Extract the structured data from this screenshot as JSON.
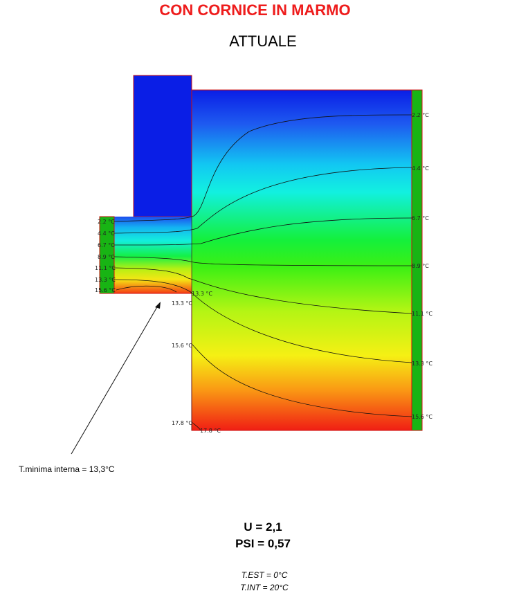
{
  "header": {
    "title": "CON CORNICE IN MARMO",
    "subtitle": "ATTUALE"
  },
  "isotherm_labels": {
    "left": [
      "2.2 °C",
      "4.4 °C",
      "6.7 °C",
      "8.9 °C",
      "11.1 °C",
      "13.3 °C",
      "15.6 °C"
    ],
    "right": [
      "2.2 °C",
      "4.4 °C",
      "6.7 °C",
      "8.9 °C",
      "11.1 °C",
      "13.3 °C",
      "15.6 °C"
    ],
    "reveal": [
      "13.3 °C",
      "13.3 °C",
      "15.6 °C",
      "17.8 °C",
      "17.8 °C"
    ]
  },
  "annotation": {
    "text": "T.minima interna = 13,3°C"
  },
  "results": {
    "u": "U = 2,1",
    "psi": "PSI = 0,57"
  },
  "conditions": {
    "t_est": "T.EST = 0°C",
    "t_int": "T.INT = 20°C"
  }
}
